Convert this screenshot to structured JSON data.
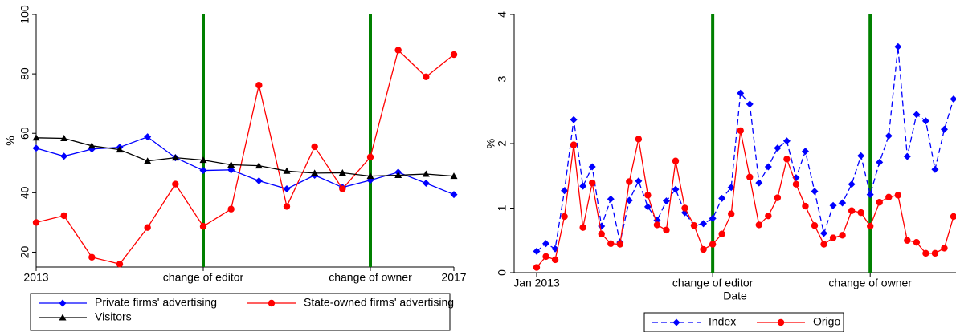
{
  "chart_data": [
    {
      "type": "line",
      "categories": [
        "2013",
        null,
        null,
        null,
        null,
        null,
        "change of editor",
        null,
        null,
        null,
        null,
        null,
        "change of owner",
        null,
        null,
        "2017"
      ],
      "ylabel": "%",
      "ylim": [
        15,
        100
      ],
      "yticks": [
        20,
        40,
        60,
        80,
        100
      ],
      "vlines": [
        6,
        12
      ],
      "vline_color": "#008000",
      "legend": "bottom",
      "series": [
        {
          "name": "Private firms' advertising",
          "color": "#0000ff",
          "marker": "diamond",
          "values": [
            55.0,
            52.3,
            54.7,
            55.3,
            58.8,
            51.8,
            47.5,
            47.7,
            44.0,
            41.3,
            45.9,
            41.8,
            44.2,
            46.9,
            43.2,
            39.4
          ]
        },
        {
          "name": "State-owned firms' advertising",
          "color": "#ff0000",
          "marker": "circle",
          "values": [
            30.0,
            32.3,
            18.3,
            16.0,
            28.3,
            42.9,
            28.7,
            34.5,
            76.2,
            35.4,
            55.5,
            41.3,
            52.0,
            88.0,
            79.0,
            86.5
          ]
        },
        {
          "name": "Visitors",
          "color": "#000000",
          "marker": "triangle",
          "values": [
            58.5,
            58.3,
            55.8,
            54.5,
            50.7,
            51.8,
            51.0,
            49.4,
            49.1,
            47.3,
            46.6,
            46.7,
            45.6,
            45.9,
            46.3,
            45.6
          ]
        }
      ]
    },
    {
      "type": "line",
      "categories": [
        "Jan 2013",
        null,
        null,
        null,
        null,
        null,
        null,
        null,
        null,
        null,
        null,
        null,
        null,
        null,
        null,
        null,
        null,
        null,
        null,
        "change of editor",
        null,
        null,
        null,
        null,
        null,
        null,
        null,
        null,
        null,
        null,
        null,
        null,
        null,
        null,
        null,
        null,
        "change of owner",
        null,
        null,
        null,
        null,
        null,
        null,
        null,
        null,
        null
      ],
      "xlabel": "Date",
      "ylabel": "%",
      "ylim": [
        0,
        4
      ],
      "yticks": [
        0,
        1,
        2,
        3,
        4
      ],
      "vlines": [
        19,
        36
      ],
      "vline_color": "#008000",
      "legend": "bottom",
      "series": [
        {
          "name": "Index",
          "color": "#0000ff",
          "marker": "diamond",
          "dash": true,
          "values": [
            0.33,
            0.45,
            0.37,
            1.27,
            2.37,
            1.34,
            1.64,
            0.72,
            1.14,
            0.47,
            1.12,
            1.42,
            1.02,
            0.81,
            1.11,
            1.29,
            0.93,
            0.73,
            0.76,
            0.84,
            1.15,
            1.32,
            2.78,
            2.61,
            1.39,
            1.64,
            1.93,
            2.04,
            1.47,
            1.88,
            1.26,
            0.61,
            1.04,
            1.08,
            1.37,
            1.81,
            1.21,
            1.71,
            2.12,
            3.5,
            1.8,
            2.45,
            2.35,
            1.6,
            2.22,
            2.69
          ]
        },
        {
          "name": "Origo",
          "color": "#ff0000",
          "marker": "circle",
          "values": [
            0.08,
            0.25,
            0.2,
            0.87,
            1.98,
            0.7,
            1.39,
            0.6,
            0.45,
            0.44,
            1.41,
            2.07,
            1.2,
            0.74,
            0.66,
            1.73,
            1.0,
            0.73,
            0.36,
            0.44,
            0.6,
            0.91,
            2.2,
            1.48,
            0.74,
            0.88,
            1.16,
            1.76,
            1.37,
            1.03,
            0.73,
            0.44,
            0.54,
            0.58,
            0.96,
            0.93,
            0.72,
            1.09,
            1.17,
            1.2,
            0.5,
            0.47,
            0.3,
            0.3,
            0.38,
            0.87
          ]
        }
      ]
    }
  ]
}
